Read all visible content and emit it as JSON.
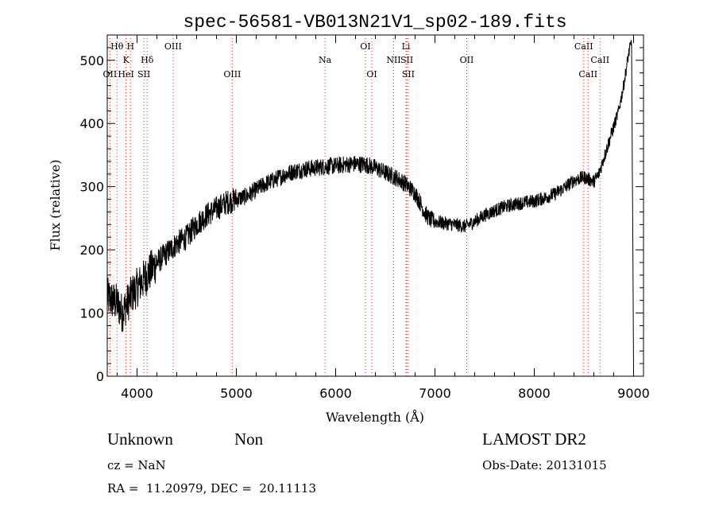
{
  "chart_data": {
    "type": "line",
    "title": "spec-56581-VB013N21V1_sp02-189.fits",
    "xlabel": "Wavelength (Å)",
    "ylabel": "Flux (relative)",
    "xlim": [
      3700,
      9100
    ],
    "ylim": [
      0,
      540
    ],
    "xticks": [
      4000,
      5000,
      6000,
      7000,
      8000,
      9000
    ],
    "yticks": [
      0,
      100,
      200,
      300,
      400,
      500
    ],
    "grid": false,
    "line_color": "#000000",
    "marker_color": "#cc3333",
    "continuum": {
      "x": [
        3700,
        3750,
        3800,
        3850,
        3900,
        3950,
        4000,
        4100,
        4200,
        4300,
        4400,
        4500,
        4600,
        4700,
        4800,
        4900,
        5000,
        5100,
        5200,
        5300,
        5400,
        5500,
        5600,
        5700,
        5800,
        5900,
        6000,
        6100,
        6200,
        6300,
        6400,
        6500,
        6600,
        6700,
        6800,
        6850,
        6900,
        6950,
        7000,
        7100,
        7200,
        7300,
        7400,
        7500,
        7600,
        7700,
        7800,
        7900,
        8000,
        8100,
        8200,
        8300,
        8400,
        8500,
        8600,
        8650,
        8700,
        8750,
        8800,
        8850,
        8900,
        8950,
        8980,
        9000
      ],
      "y": [
        125,
        120,
        115,
        100,
        115,
        130,
        140,
        160,
        180,
        195,
        210,
        220,
        240,
        255,
        265,
        275,
        280,
        285,
        295,
        305,
        312,
        320,
        325,
        328,
        330,
        332,
        333,
        335,
        336,
        335,
        330,
        322,
        315,
        305,
        290,
        275,
        258,
        248,
        245,
        242,
        240,
        237,
        245,
        255,
        262,
        268,
        272,
        275,
        277,
        282,
        288,
        298,
        310,
        315,
        308,
        320,
        345,
        370,
        395,
        420,
        460,
        510,
        530,
        10
      ]
    },
    "line_markers": [
      {
        "label": "Hθ",
        "x": 3798,
        "row": 0
      },
      {
        "label": "H",
        "x": 3934,
        "row": 0
      },
      {
        "label": "K",
        "x": 3890,
        "row": 1
      },
      {
        "label": "Hδ",
        "x": 4102,
        "row": 1
      },
      {
        "label": "OII",
        "x": 3727,
        "row": 2
      },
      {
        "label": "HeI",
        "x": 3889,
        "row": 2
      },
      {
        "label": "SII",
        "x": 4070,
        "row": 2
      },
      {
        "label": "OIII",
        "x": 4363,
        "row": 0
      },
      {
        "label": "OIII",
        "x": 4959,
        "row": 2
      },
      {
        "label": "Na",
        "x": 5893,
        "row": 1
      },
      {
        "label": "OI",
        "x": 6300,
        "row": 0
      },
      {
        "label": "OI",
        "x": 6364,
        "row": 2
      },
      {
        "label": "Li",
        "x": 6708,
        "row": 0
      },
      {
        "label": "NII",
        "x": 6584,
        "row": 1
      },
      {
        "label": "SII",
        "x": 6717,
        "row": 1
      },
      {
        "label": "SII",
        "x": 6731,
        "row": 2
      },
      {
        "label": "OII",
        "x": 7320,
        "row": 1
      },
      {
        "label": "CaII",
        "x": 8498,
        "row": 0
      },
      {
        "label": "CaII",
        "x": 8662,
        "row": 1
      },
      {
        "label": "CaII",
        "x": 8542,
        "row": 2
      }
    ]
  },
  "info": {
    "class": "Unknown",
    "subclass": "Non",
    "survey": "LAMOST DR2",
    "cz": "cz = NaN",
    "obs_date": "Obs-Date: 20131015",
    "radec": "RA =  11.20979, DEC =  20.11113"
  }
}
